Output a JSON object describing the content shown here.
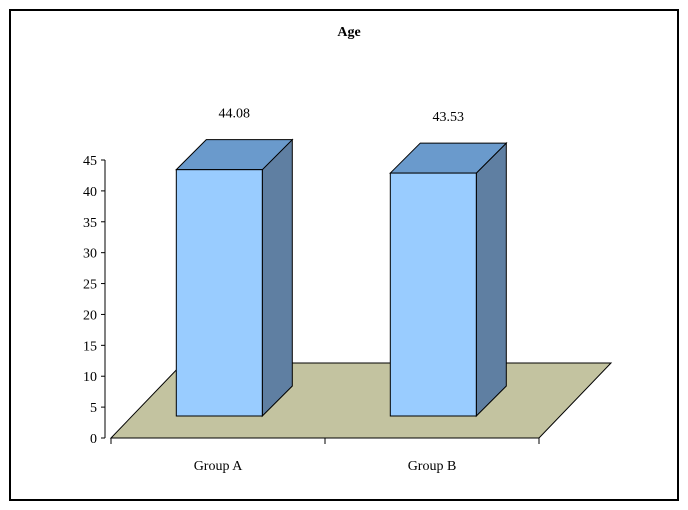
{
  "chart_data": {
    "type": "bar",
    "title": "Age",
    "categories": [
      "Group A",
      "Group B"
    ],
    "values": [
      44.08,
      43.53
    ],
    "data_labels": [
      "44.08",
      "43.53"
    ],
    "ylim": [
      0,
      45
    ],
    "yticks": [
      "0",
      "5",
      "10",
      "15",
      "20",
      "25",
      "30",
      "35",
      "40",
      "45"
    ],
    "grid": false,
    "legend": "none",
    "three_d": true,
    "colors": {
      "bar_front": "#99CCFF",
      "bar_top": "#6A9ACC",
      "bar_side": "#5F7FA2",
      "floor": "#C3C3A0",
      "stroke": "#000000"
    }
  }
}
